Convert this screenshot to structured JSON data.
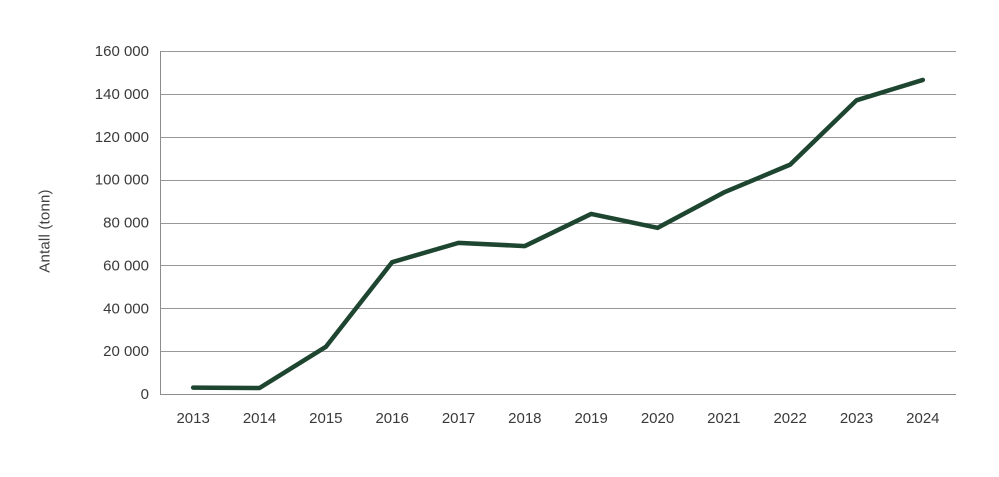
{
  "chart_data": {
    "type": "line",
    "title": "",
    "xlabel": "",
    "ylabel": "Antall (tonn)",
    "categories": [
      "2013",
      "2014",
      "2015",
      "2016",
      "2017",
      "2018",
      "2019",
      "2020",
      "2021",
      "2022",
      "2023",
      "2024"
    ],
    "series": [
      {
        "name": "Antall (tonn)",
        "values": [
          3000,
          2800,
          22000,
          61500,
          70500,
          69000,
          84000,
          77500,
          94000,
          107000,
          137000,
          146500
        ]
      }
    ],
    "ylim": [
      0,
      160000
    ],
    "ytick_values": [
      0,
      20000,
      40000,
      60000,
      80000,
      100000,
      120000,
      140000,
      160000
    ],
    "ytick_labels": [
      "0",
      "20 000",
      "40 000",
      "60 000",
      "80 000",
      "100 000",
      "120 000",
      "140 000",
      "160 000"
    ],
    "grid": true,
    "legend": false,
    "colors": {
      "line": "#1d4530",
      "gridline": "#999999",
      "axis": "#8c8c8c",
      "text": "#3a3a3a",
      "background": "#ffffff"
    }
  }
}
